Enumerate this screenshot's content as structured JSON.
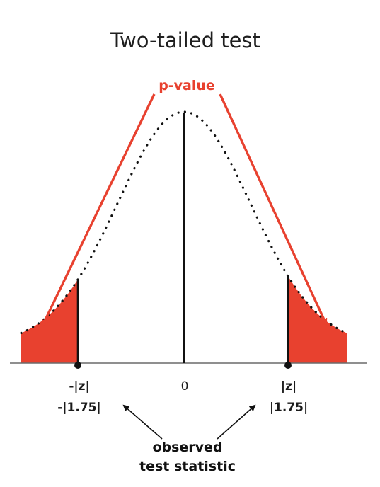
{
  "title": "Two-tailed test",
  "p_value_label": "p-value",
  "center_label": "0",
  "left_critical": {
    "symbol": "-|z|",
    "value": "-|1.75|"
  },
  "right_critical": {
    "symbol": "|z|",
    "value": "|1.75|"
  },
  "observed_label": {
    "line1": "observed",
    "line2": "test statistic"
  },
  "colors": {
    "accent": "#e8412f",
    "ink": "#111111",
    "axis": "#555555"
  }
}
